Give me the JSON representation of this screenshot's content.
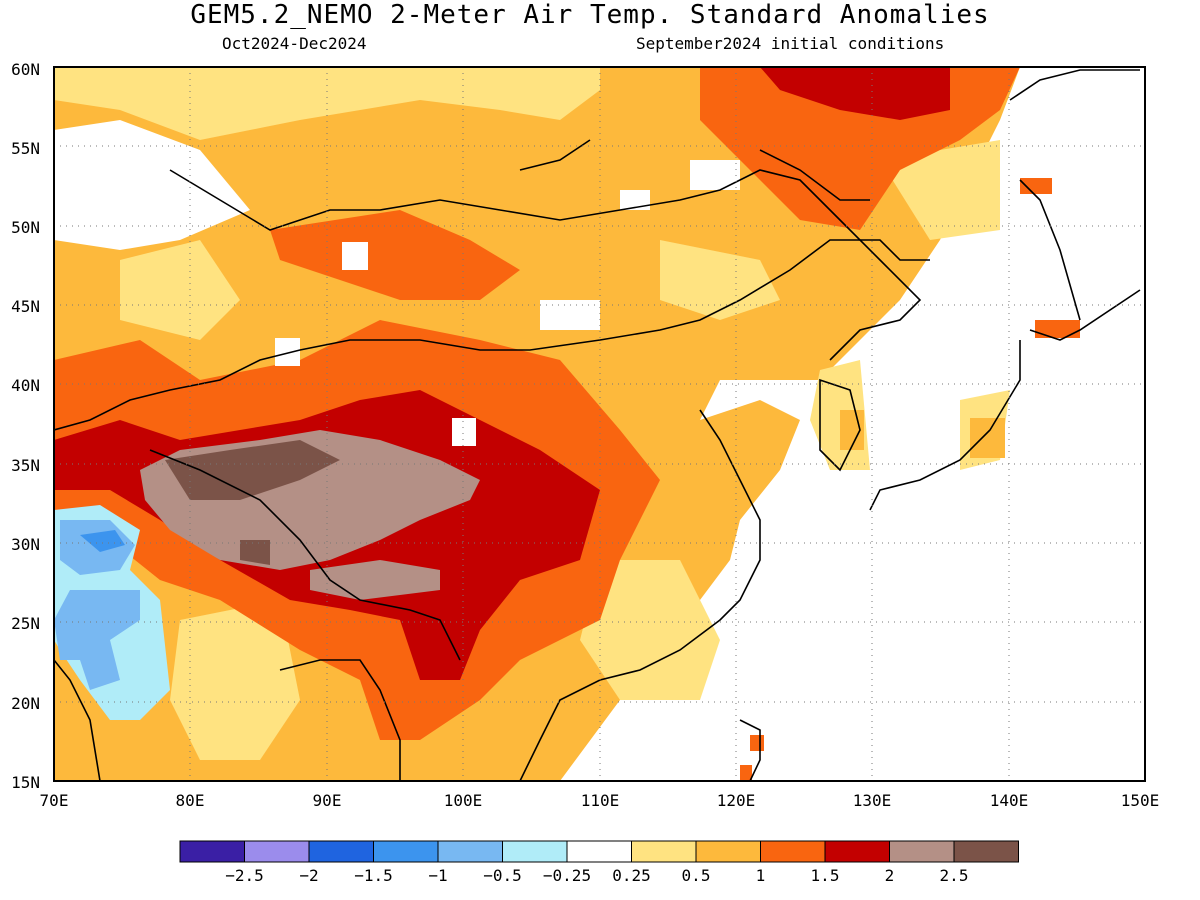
{
  "header": {
    "title": "GEM5.2_NEMO 2-Meter Air Temp. Standard Anomalies",
    "period": "Oct2024-Dec2024",
    "init": "September2024 initial conditions"
  },
  "map": {
    "lon_range": [
      70,
      150
    ],
    "lat_range": [
      15,
      60
    ],
    "grid": true,
    "lon_ticks": [
      "70E",
      "80E",
      "90E",
      "100E",
      "110E",
      "120E",
      "130E",
      "140E",
      "150E"
    ],
    "lat_ticks": [
      "15N",
      "20N",
      "25N",
      "30N",
      "35N",
      "40N",
      "45N",
      "50N",
      "55N",
      "60N"
    ]
  },
  "colorbar": {
    "colors": [
      "#3a1fa5",
      "#9b8cec",
      "#1f64e0",
      "#3c94ee",
      "#78b8f2",
      "#b0ecf8",
      "#ffffff",
      "#ffe381",
      "#fdb93c",
      "#f96510",
      "#c30000",
      "#b49086",
      "#7b5348"
    ],
    "labels": [
      "-2.5",
      "-2",
      "-1.5",
      "-1",
      "-0.5",
      "-0.25",
      "0.25",
      "0.5",
      "1",
      "1.5",
      "2",
      "2.5"
    ]
  }
}
